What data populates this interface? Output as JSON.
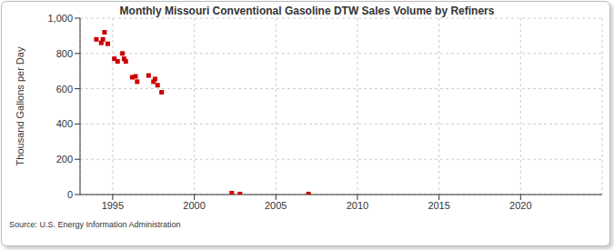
{
  "chart_data": {
    "type": "scatter",
    "title": "Monthly Missouri Conventional Gasoline DTW Sales Volume by Refiners",
    "y_label": "Thousand Gallons per Day",
    "source": "Source: U.S. Energy Information Administration",
    "series": [
      {
        "name": "Missouri Conventional Gasoline DTW Sales Volume by Refiners",
        "color": "#cc0000",
        "marker": "square",
        "x": [
          1994.0,
          1994.3,
          1994.4,
          1994.5,
          1994.7,
          1995.1,
          1995.3,
          1995.6,
          1995.7,
          1995.8,
          1996.2,
          1996.4,
          1996.5,
          1997.2,
          1997.5,
          1997.6,
          1997.75,
          1998.0,
          2002.3,
          2002.8,
          2007.0
        ],
        "values": [
          880,
          860,
          880,
          920,
          855,
          770,
          755,
          800,
          770,
          755,
          665,
          670,
          640,
          675,
          640,
          655,
          620,
          580,
          8,
          3,
          3
        ]
      }
    ],
    "xlim": [
      1993,
      2025
    ],
    "xticks": [
      1995,
      2000,
      2005,
      2010,
      2015,
      2020
    ],
    "ylim": [
      0,
      1000
    ],
    "yticks": [
      0,
      200,
      400,
      600,
      800,
      {
        "value": 1000,
        "label": "1,000"
      }
    ],
    "grid": true
  }
}
